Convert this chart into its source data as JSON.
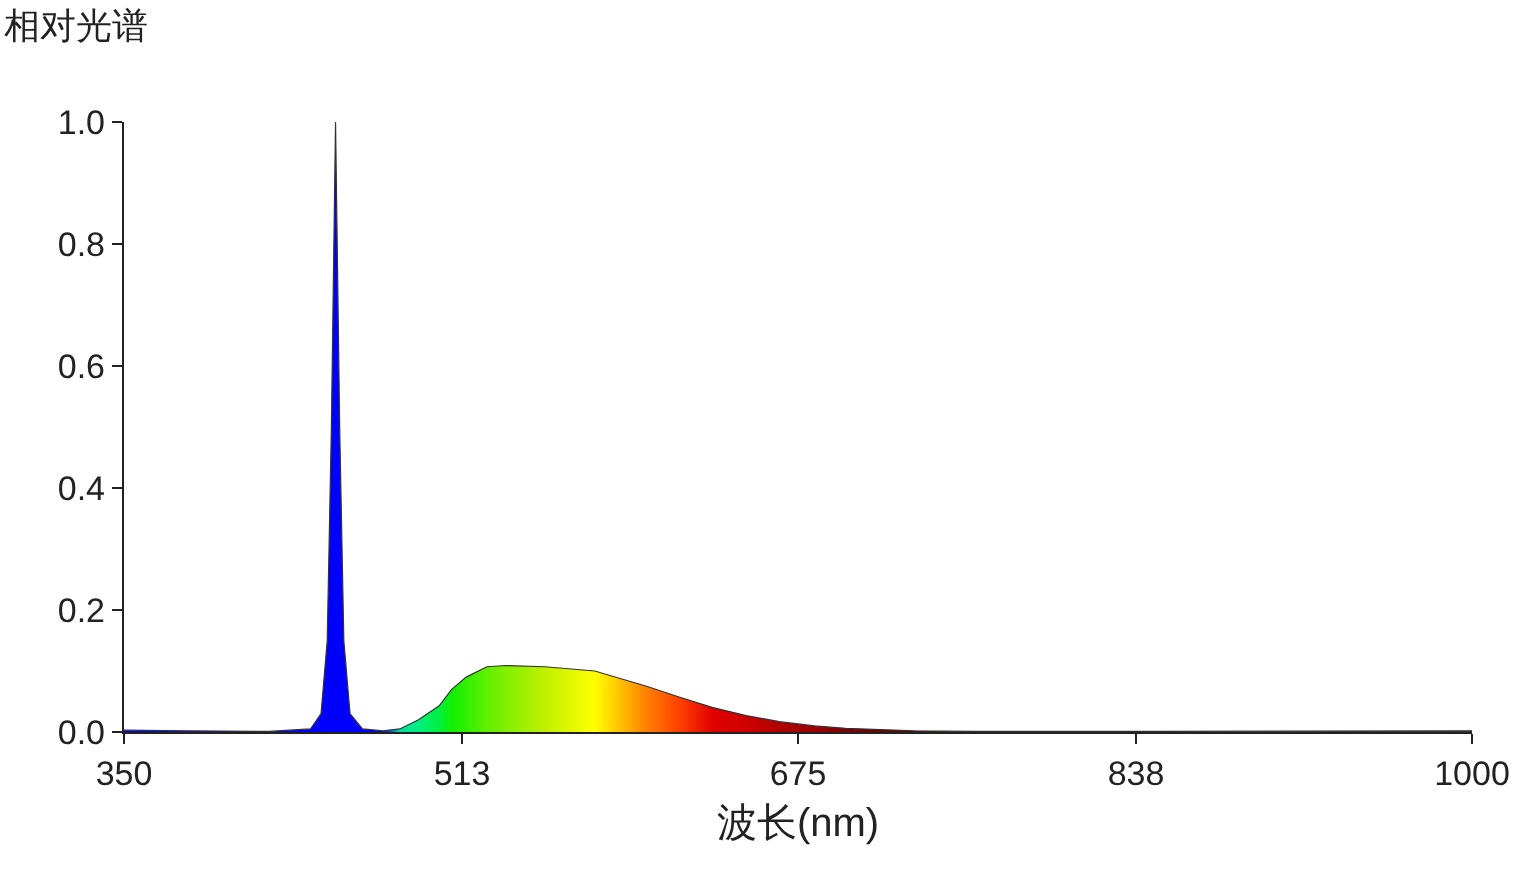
{
  "chart_data": {
    "type": "area",
    "ylabel": "相对光谱",
    "xlabel": "波长(nm)",
    "x": [
      350,
      380,
      420,
      440,
      445,
      448,
      450,
      452,
      454,
      456,
      459,
      465,
      475,
      483,
      492,
      502,
      508,
      515,
      525,
      534,
      553,
      577,
      602,
      618,
      634,
      650,
      666,
      683,
      698,
      731,
      760,
      850,
      1000
    ],
    "values": [
      0.003,
      0.002,
      0.001,
      0.005,
      0.03,
      0.15,
      0.5,
      1.0,
      0.5,
      0.15,
      0.03,
      0.005,
      0.002,
      0.005,
      0.02,
      0.043,
      0.07,
      0.09,
      0.107,
      0.109,
      0.107,
      0.1,
      0.075,
      0.057,
      0.04,
      0.027,
      0.017,
      0.01,
      0.006,
      0.002,
      0.001,
      0.001,
      0.002
    ],
    "colors": [
      "#0000ff",
      "#0000ff",
      "#0000ff",
      "#0000ff",
      "#0000ff",
      "#0000ff",
      "#0000ff",
      "#0000ff",
      "#0000ff",
      "#0000ff",
      "#0000ff",
      "#0000ff",
      "#0000ff",
      "#00e0a0",
      "#00f080",
      "#00f040",
      "#10f000",
      "#30f000",
      "#60f000",
      "#80f000",
      "#c0f000",
      "#ffff00",
      "#ff8000",
      "#ff4000",
      "#e00000",
      "#d00000",
      "#b00000",
      "#a00000",
      "#800000",
      "#600000",
      "#404040",
      "#404040",
      "#404040"
    ],
    "xlim": [
      350,
      1000
    ],
    "xticks": [
      350,
      513,
      675,
      838,
      1000
    ],
    "ylim": [
      0,
      1
    ],
    "yticks": [
      {
        "value": 0,
        "label": "0.0"
      },
      0.2,
      0.4,
      0.6,
      0.8,
      {
        "value": 1,
        "label": "1.0"
      }
    ],
    "grid": false,
    "legend": false
  }
}
